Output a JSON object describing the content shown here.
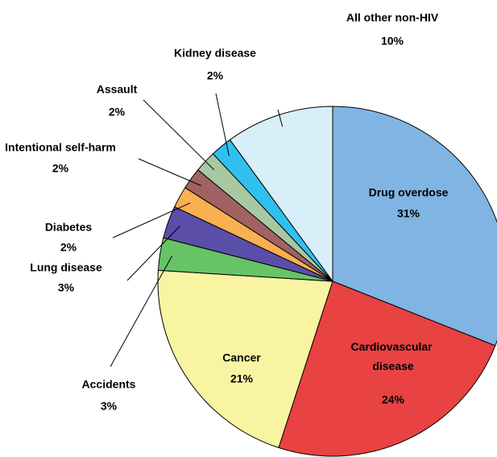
{
  "chart_data": {
    "type": "pie",
    "categories": [
      "Drug overdose",
      "Cardiovascular disease",
      "Cancer",
      "Accidents",
      "Lung disease",
      "Diabetes",
      "Intentional self-harm",
      "Assault",
      "Kidney disease",
      "All other non-HIV"
    ],
    "values": [
      31,
      24,
      21,
      3,
      3,
      2,
      2,
      2,
      2,
      10
    ],
    "value_labels": [
      "31%",
      "24%",
      "21%",
      "3%",
      "3%",
      "2%",
      "2%",
      "2%",
      "2%",
      "10%"
    ],
    "colors": [
      "#80b4e2",
      "#e84242",
      "#f8f4a2",
      "#66c466",
      "#5a4ea8",
      "#f8b050",
      "#a06262",
      "#a8c8a2",
      "#30c0f0",
      "#d8eef8"
    ]
  }
}
